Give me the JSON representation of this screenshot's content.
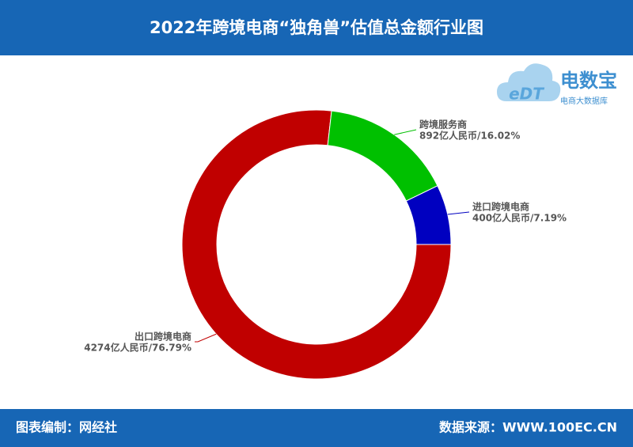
{
  "header": {
    "title": "2022年跨境电商“独角兽”估值总金额行业图"
  },
  "logo": {
    "mark": "eDT",
    "name": "电数宝",
    "tagline": "电商大数据库"
  },
  "chart_data": {
    "type": "donut",
    "categories": [
      "出口跨境电商",
      "跨境服务商",
      "进口跨境电商"
    ],
    "values": [
      4274,
      892,
      400
    ],
    "value_labels": [
      "4274亿人民币/76.79%",
      "892亿人民币/16.02%",
      "400亿人民币/7.19%"
    ],
    "colors": [
      "#c00000",
      "#00c000",
      "#0000c0"
    ]
  },
  "footer": {
    "left": "图表编制：网经社",
    "right": "数据来源：WWW.100EC.CN"
  }
}
